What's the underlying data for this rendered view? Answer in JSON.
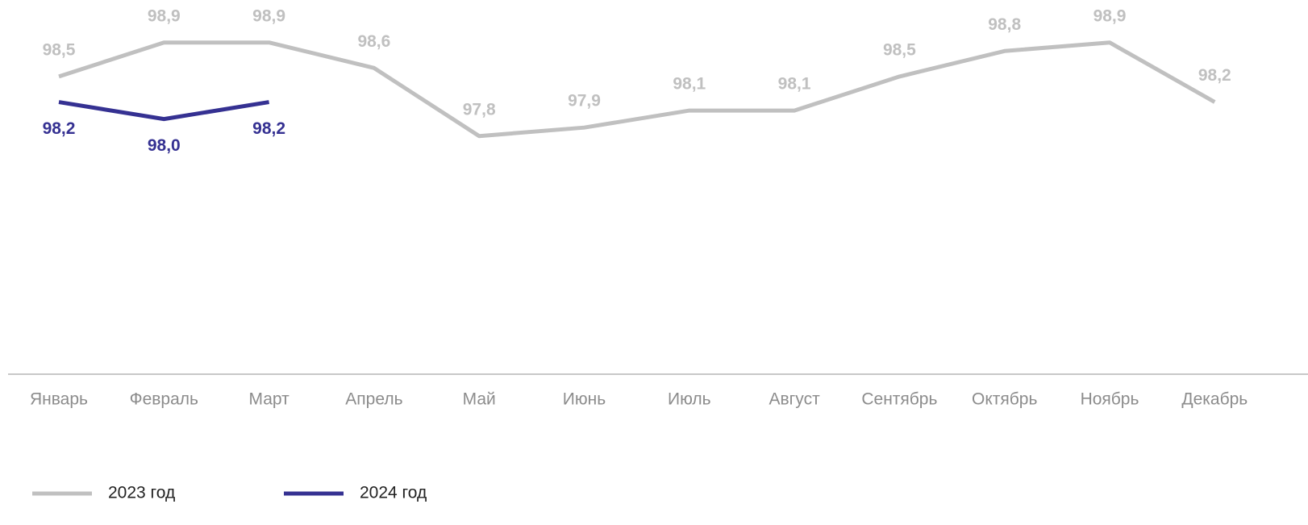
{
  "chart_data": {
    "type": "line",
    "categories": [
      "Январь",
      "Февраль",
      "Март",
      "Апрель",
      "Май",
      "Июнь",
      "Июль",
      "Август",
      "Сентябрь",
      "Октябрь",
      "Ноябрь",
      "Декабрь"
    ],
    "series": [
      {
        "name": "2023 год",
        "color": "#c0c0c0",
        "label_side": "above",
        "values": [
          98.5,
          98.9,
          98.9,
          98.6,
          97.8,
          97.9,
          98.1,
          98.1,
          98.5,
          98.8,
          98.9,
          98.2
        ],
        "value_labels": [
          "98,5",
          "98,9",
          "98,9",
          "98,6",
          "97,8",
          "97,9",
          "98,1",
          "98,1",
          "98,5",
          "98,8",
          "98,9",
          "98,2"
        ]
      },
      {
        "name": "2024 год",
        "color": "#353192",
        "label_side": "below",
        "values": [
          98.2,
          98.0,
          98.2,
          null,
          null,
          null,
          null,
          null,
          null,
          null,
          null,
          null
        ],
        "value_labels": [
          "98,2",
          "98,0",
          "98,2",
          null,
          null,
          null,
          null,
          null,
          null,
          null,
          null,
          null
        ]
      }
    ],
    "ylim": [
      95,
      99.4
    ]
  }
}
